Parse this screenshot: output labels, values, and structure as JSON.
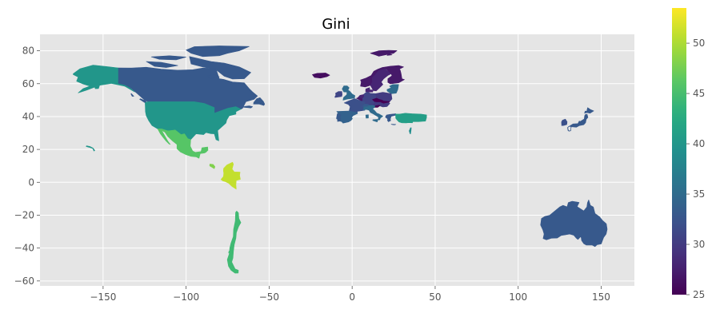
{
  "chart_data": {
    "type": "choropleth",
    "title": "Gini",
    "xlabel": "",
    "ylabel": "",
    "xlim": [
      -188,
      170
    ],
    "ylim": [
      -63,
      90
    ],
    "x_ticks": [
      -150,
      -100,
      -50,
      0,
      50,
      100,
      150
    ],
    "x_tick_labels": [
      "−150",
      "−100",
      "−50",
      "0",
      "50",
      "100",
      "150"
    ],
    "y_ticks": [
      -60,
      -40,
      -20,
      0,
      20,
      40,
      60,
      80
    ],
    "y_tick_labels": [
      "−60",
      "−40",
      "−20",
      "0",
      "20",
      "40",
      "60",
      "80"
    ],
    "grid": true,
    "colormap": "viridis",
    "colorbar": {
      "min": 25,
      "max": 53.5,
      "ticks": [
        25,
        30,
        35,
        40,
        45,
        50
      ],
      "tick_labels": [
        "25",
        "30",
        "35",
        "40",
        "45",
        "50"
      ]
    },
    "regions": [
      {
        "id": "canada",
        "value": 33
      },
      {
        "id": "alaska-usa",
        "value": 40
      },
      {
        "id": "usa",
        "value": 40
      },
      {
        "id": "hawaii-usa",
        "value": 40
      },
      {
        "id": "mexico",
        "value": 46
      },
      {
        "id": "colombia",
        "value": 51
      },
      {
        "id": "chile",
        "value": 44.5
      },
      {
        "id": "costa-rica",
        "value": 48
      },
      {
        "id": "iceland",
        "value": 26
      },
      {
        "id": "svalbard-norway",
        "value": 27
      },
      {
        "id": "norway",
        "value": 27
      },
      {
        "id": "sweden",
        "value": 28
      },
      {
        "id": "finland",
        "value": 27
      },
      {
        "id": "denmark",
        "value": 28
      },
      {
        "id": "baltics",
        "value": 35
      },
      {
        "id": "uk",
        "value": 35
      },
      {
        "id": "ireland",
        "value": 31
      },
      {
        "id": "france",
        "value": 32
      },
      {
        "id": "germany",
        "value": 31
      },
      {
        "id": "netherlands",
        "value": 28
      },
      {
        "id": "belgium",
        "value": 27
      },
      {
        "id": "poland",
        "value": 30
      },
      {
        "id": "czechia-slovakia",
        "value": 25
      },
      {
        "id": "austria",
        "value": 30
      },
      {
        "id": "hungary",
        "value": 30
      },
      {
        "id": "slovenia",
        "value": 25
      },
      {
        "id": "switzerland",
        "value": 33
      },
      {
        "id": "spain",
        "value": 34
      },
      {
        "id": "portugal",
        "value": 33
      },
      {
        "id": "italy",
        "value": 35
      },
      {
        "id": "greece",
        "value": 33
      },
      {
        "id": "turkey",
        "value": 41
      },
      {
        "id": "israel",
        "value": 39
      },
      {
        "id": "japan",
        "value": 33
      },
      {
        "id": "korea",
        "value": 32
      },
      {
        "id": "australia",
        "value": 33
      },
      {
        "id": "newfoundland-canada",
        "value": 33
      }
    ]
  }
}
